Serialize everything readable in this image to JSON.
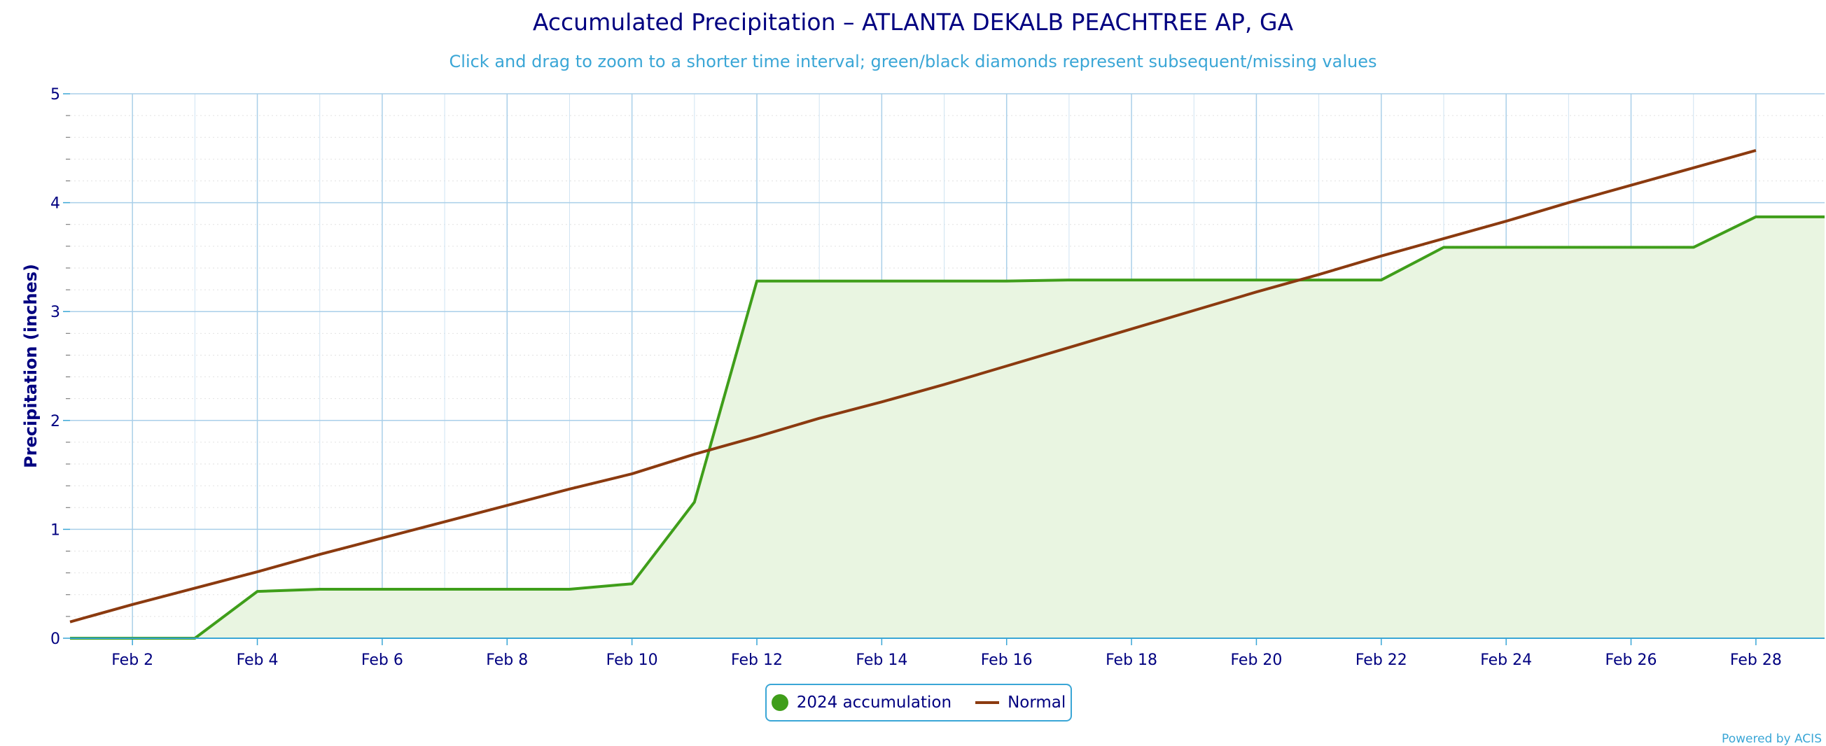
{
  "chart_data": {
    "type": "area",
    "title": "Accumulated Precipitation – ATLANTA DEKALB PEACHTREE AP, GA",
    "subtitle": "Click and drag to zoom to a shorter time interval; green/black diamonds represent subsequent/missing values",
    "ylabel": "Precipitation (inches)",
    "xlabel": "",
    "ylim": [
      0,
      5
    ],
    "yticks": [
      0,
      1,
      2,
      3,
      4,
      5
    ],
    "xlim": [
      1,
      29.1
    ],
    "x_ticks": [
      2,
      4,
      6,
      8,
      10,
      12,
      14,
      16,
      18,
      20,
      22,
      24,
      26,
      28
    ],
    "x_tick_labels": [
      "Feb 2",
      "Feb 4",
      "Feb 6",
      "Feb 8",
      "Feb 10",
      "Feb 12",
      "Feb 14",
      "Feb 16",
      "Feb 18",
      "Feb 20",
      "Feb 22",
      "Feb 24",
      "Feb 26",
      "Feb 28"
    ],
    "grid": true,
    "legend_position": "bottom-center",
    "series": [
      {
        "name": "2024 accumulation",
        "color": "#3f9e1a",
        "fill": "#e9f5e1",
        "x": [
          1,
          2,
          3,
          4,
          5,
          6,
          7,
          8,
          9,
          10,
          11,
          12,
          13,
          14,
          15,
          16,
          17,
          18,
          19,
          20,
          21,
          22,
          23,
          24,
          25,
          26,
          27,
          28,
          29
        ],
        "values": [
          0.0,
          0.0,
          0.0,
          0.43,
          0.45,
          0.45,
          0.45,
          0.45,
          0.45,
          0.5,
          1.25,
          3.28,
          3.28,
          3.28,
          3.28,
          3.28,
          3.29,
          3.29,
          3.29,
          3.29,
          3.29,
          3.29,
          3.59,
          3.59,
          3.59,
          3.59,
          3.59,
          3.87,
          3.87
        ]
      },
      {
        "name": "Normal",
        "color": "#8b3a0f",
        "x": [
          1,
          2,
          3,
          4,
          5,
          6,
          7,
          8,
          9,
          10,
          11,
          12,
          13,
          14,
          15,
          16,
          17,
          18,
          19,
          20,
          21,
          22,
          23,
          24,
          25,
          26,
          27,
          28
        ],
        "values": [
          0.15,
          0.31,
          0.46,
          0.61,
          0.77,
          0.92,
          1.07,
          1.22,
          1.37,
          1.51,
          1.69,
          1.85,
          2.02,
          2.17,
          2.33,
          2.5,
          2.67,
          2.84,
          3.01,
          3.18,
          3.34,
          3.51,
          3.67,
          3.83,
          4.0,
          4.16,
          4.32,
          4.48
        ]
      }
    ]
  },
  "legend": {
    "items": [
      {
        "label": "2024 accumulation",
        "color": "#3f9e1a",
        "symbol": "circle"
      },
      {
        "label": "Normal",
        "color": "#8b3a0f",
        "symbol": "line"
      }
    ]
  },
  "credit": "Powered by ACIS"
}
